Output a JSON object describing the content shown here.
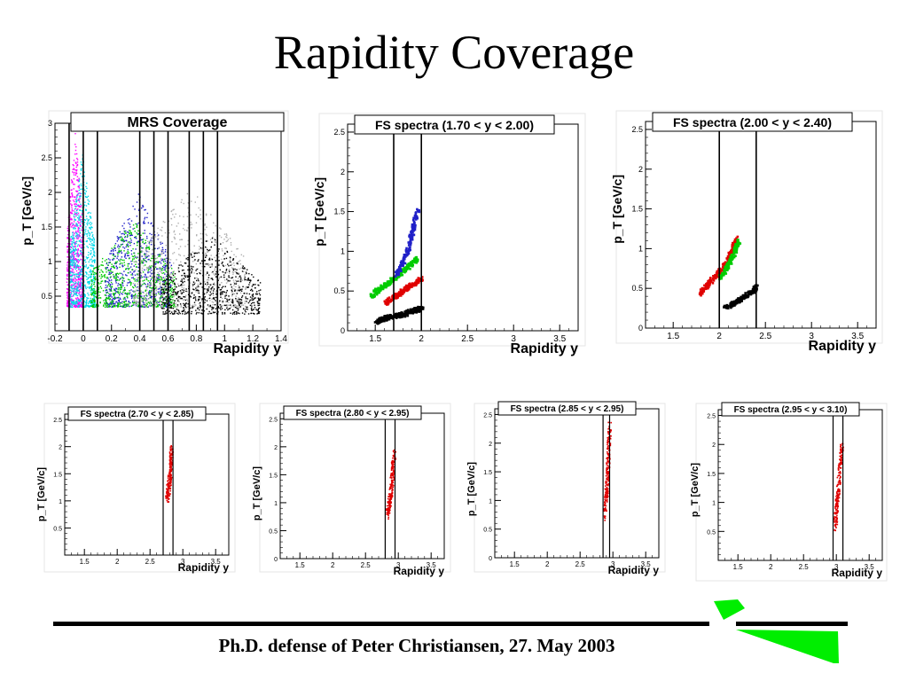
{
  "slide": {
    "title": "Rapidity Coverage",
    "footer": "Ph.D. defense of Peter Christiansen, 27. May 2003",
    "accent_color": "#00ee00"
  },
  "chart_data": [
    {
      "type": "scatter",
      "title": "MRS Coverage",
      "xlabel": "Rapidity y",
      "ylabel": "p_T [GeV/c]",
      "xlim": [
        -0.2,
        1.4
      ],
      "ylim": [
        0,
        3
      ],
      "xticks": [
        "-0.2",
        "0",
        "0.2",
        "0.4",
        "0.6",
        "0.8",
        "1",
        "1.2",
        "1.4"
      ],
      "yticks": [
        "0.5",
        "1",
        "1.5",
        "2",
        "2.5",
        "3"
      ],
      "bin_edges": [
        -0.1,
        0,
        0.1,
        0.4,
        0.5,
        0.6,
        0.75,
        0.85,
        0.95
      ],
      "bands": [
        {
          "color": "#ff00ff",
          "y_range": [
            -0.12,
            0.0
          ],
          "pt_range": [
            0.35,
            2.9
          ]
        },
        {
          "color": "#00d8e8",
          "y_range": [
            -0.1,
            0.08
          ],
          "pt_range": [
            0.35,
            2.6
          ]
        },
        {
          "color": "#2020c8",
          "y_range": [
            0.15,
            0.62
          ],
          "pt_range": [
            0.35,
            2.0
          ]
        },
        {
          "color": "#00cc00",
          "y_range": [
            0.05,
            0.65
          ],
          "pt_range": [
            0.35,
            1.6
          ]
        },
        {
          "color": "#b0b0b0",
          "y_range": [
            0.35,
            1.15
          ],
          "pt_range": [
            0.35,
            2.1
          ]
        },
        {
          "color": "#000000",
          "y_range": [
            0.55,
            1.25
          ],
          "pt_range": [
            0.25,
            1.4
          ]
        }
      ]
    },
    {
      "type": "scatter",
      "title": "FS spectra (1.70 < y < 2.00)",
      "xlabel": "Rapidity y",
      "ylabel": "p_T [GeV/c]",
      "xlim": [
        1.2,
        3.7
      ],
      "ylim": [
        0,
        2.6
      ],
      "xticks": [
        "1.5",
        "2",
        "2.5",
        "3",
        "3.5"
      ],
      "yticks": [
        "0",
        "0.5",
        "1",
        "1.5",
        "2",
        "2.5"
      ],
      "bin_edges": [
        1.7,
        2.0
      ],
      "series": [
        {
          "color": "#00cc00",
          "x": [
            1.45,
            1.55,
            1.65,
            1.75,
            1.85,
            1.95
          ],
          "y": [
            0.46,
            0.55,
            0.63,
            0.72,
            0.82,
            0.93
          ]
        },
        {
          "color": "#2020c8",
          "x": [
            1.72,
            1.78,
            1.85,
            1.9,
            1.95
          ],
          "y": [
            0.72,
            0.85,
            1.05,
            1.3,
            1.55
          ]
        },
        {
          "color": "#e00000",
          "x": [
            1.6,
            1.7,
            1.8,
            1.9,
            2.0
          ],
          "y": [
            0.36,
            0.44,
            0.52,
            0.6,
            0.68
          ]
        },
        {
          "color": "#000000",
          "x": [
            1.5,
            1.6,
            1.7,
            1.8,
            1.9,
            2.0
          ],
          "y": [
            0.13,
            0.17,
            0.2,
            0.22,
            0.26,
            0.3
          ]
        }
      ]
    },
    {
      "type": "scatter",
      "title": "FS spectra (2.00 < y < 2.40)",
      "xlabel": "Rapidity y",
      "ylabel": "p_T [GeV/c]",
      "xlim": [
        1.2,
        3.7
      ],
      "ylim": [
        0,
        2.6
      ],
      "xticks": [
        "1.5",
        "2",
        "2.5",
        "3",
        "3.5"
      ],
      "yticks": [
        "0",
        "0.5",
        "1",
        "1.5",
        "2",
        "2.5"
      ],
      "bin_edges": [
        2.0,
        2.4
      ],
      "series": [
        {
          "color": "#e00000",
          "x": [
            1.78,
            1.85,
            1.95,
            2.05,
            2.12,
            2.18
          ],
          "y": [
            0.45,
            0.55,
            0.67,
            0.8,
            0.97,
            1.15
          ]
        },
        {
          "color": "#00cc00",
          "x": [
            2.0,
            2.08,
            2.15,
            2.2
          ],
          "y": [
            0.65,
            0.8,
            0.95,
            1.12
          ]
        },
        {
          "color": "#000000",
          "x": [
            2.05,
            2.15,
            2.25,
            2.35,
            2.4
          ],
          "y": [
            0.27,
            0.33,
            0.4,
            0.48,
            0.55
          ]
        }
      ]
    },
    {
      "type": "scatter",
      "title": "FS spectra (2.70 < y < 2.85)",
      "xlabel": "Rapidity y",
      "ylabel": "p_T [GeV/c]",
      "xlim": [
        1.2,
        3.7
      ],
      "ylim": [
        0,
        2.6
      ],
      "xticks": [
        "1.5",
        "2",
        "2.5",
        "3",
        "3.5"
      ],
      "yticks": [
        "0.5",
        "1",
        "1.5",
        "2",
        "2.5"
      ],
      "bin_edges": [
        2.7,
        2.85
      ],
      "series": [
        {
          "color": "#e00000",
          "x": [
            2.75,
            2.78,
            2.8,
            2.82
          ],
          "y": [
            1.05,
            1.3,
            1.6,
            1.95
          ]
        }
      ]
    },
    {
      "type": "scatter",
      "title": "FS spectra (2.80 < y < 2.95)",
      "xlabel": "Rapidity y",
      "ylabel": "p_T [GeV/c]",
      "xlim": [
        1.2,
        3.7
      ],
      "ylim": [
        0,
        2.6
      ],
      "xticks": [
        "1.5",
        "2",
        "2.5",
        "3",
        "3.5"
      ],
      "yticks": [
        "0",
        "0.5",
        "1",
        "1.5",
        "2",
        "2.5"
      ],
      "bin_edges": [
        2.8,
        2.95
      ],
      "series": [
        {
          "color": "#e00000",
          "x": [
            2.83,
            2.87,
            2.9,
            2.93
          ],
          "y": [
            0.8,
            1.1,
            1.5,
            1.9
          ]
        }
      ]
    },
    {
      "type": "scatter",
      "title": "FS spectra (2.85 < y < 2.95)",
      "xlabel": "Rapidity y",
      "ylabel": "p_T [GeV/c]",
      "xlim": [
        1.2,
        3.7
      ],
      "ylim": [
        0,
        2.6
      ],
      "xticks": [
        "1.5",
        "2",
        "2.5",
        "3",
        "3.5"
      ],
      "yticks": [
        "0",
        "0.5",
        "1",
        "1.5",
        "2",
        "2.5"
      ],
      "bin_edges": [
        2.85,
        2.95
      ],
      "series": [
        {
          "color": "#e00000",
          "x": [
            2.87,
            2.9,
            2.92,
            2.94
          ],
          "y": [
            0.75,
            1.2,
            1.7,
            2.3
          ]
        }
      ]
    },
    {
      "type": "scatter",
      "title": "FS spectra (2.95 < y < 3.10)",
      "xlabel": "Rapidity y",
      "ylabel": "p_T [GeV/c]",
      "xlim": [
        1.2,
        3.7
      ],
      "ylim": [
        0,
        2.6
      ],
      "xticks": [
        "1.5",
        "2",
        "2.5",
        "3",
        "3.5"
      ],
      "yticks": [
        "0.5",
        "1",
        "1.5",
        "2",
        "2.5"
      ],
      "bin_edges": [
        2.95,
        3.1
      ],
      "series": [
        {
          "color": "#e00000",
          "x": [
            2.97,
            3.0,
            3.04,
            3.08
          ],
          "y": [
            0.6,
            1.0,
            1.5,
            2.0
          ]
        }
      ]
    }
  ]
}
